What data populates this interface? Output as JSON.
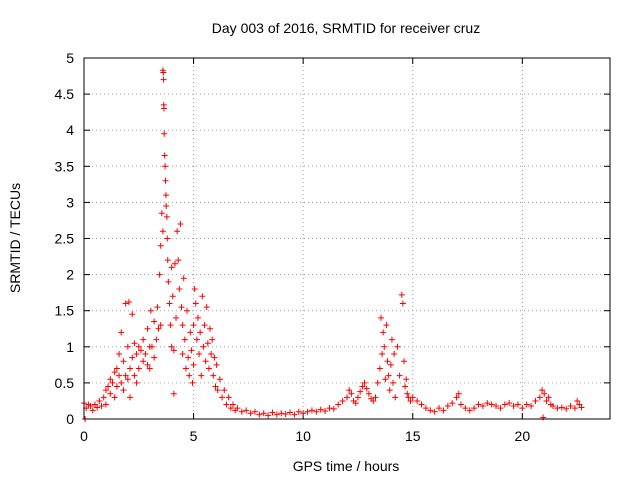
{
  "chart_data": {
    "type": "scatter",
    "title": "Day 003 of 2016, SRMTID for receiver cruz",
    "xlabel": "GPS time / hours",
    "ylabel": "SRMTID / TECUs",
    "xlim": [
      0,
      24
    ],
    "ylim": [
      0,
      5
    ],
    "grid": true,
    "marker": "+",
    "series_color": "#ff0000",
    "x_ticks": [
      0,
      5,
      10,
      15,
      20
    ],
    "x_tick_labels": [
      "0",
      "5",
      "10",
      "15",
      "20"
    ],
    "y_ticks": [
      0,
      0.5,
      1,
      1.5,
      2,
      2.5,
      3,
      3.5,
      4,
      4.5,
      5
    ],
    "y_tick_labels": [
      "0",
      "0.5",
      "1",
      "1.5",
      "2",
      "2.5",
      "3",
      "3.5",
      "4",
      "4.5",
      "5"
    ],
    "series": [
      {
        "name": "SRMTID",
        "points": [
          [
            0.0,
            0.22
          ],
          [
            0.05,
            0.0
          ],
          [
            0.1,
            0.15
          ],
          [
            0.2,
            0.2
          ],
          [
            0.3,
            0.18
          ],
          [
            0.4,
            0.12
          ],
          [
            0.5,
            0.2
          ],
          [
            0.6,
            0.16
          ],
          [
            0.7,
            0.25
          ],
          [
            0.8,
            0.18
          ],
          [
            0.9,
            0.3
          ],
          [
            1.0,
            0.4
          ],
          [
            1.0,
            0.2
          ],
          [
            1.1,
            0.45
          ],
          [
            1.2,
            0.35
          ],
          [
            1.2,
            0.55
          ],
          [
            1.3,
            0.5
          ],
          [
            1.4,
            0.65
          ],
          [
            1.4,
            0.3
          ],
          [
            1.5,
            0.7
          ],
          [
            1.5,
            0.45
          ],
          [
            1.6,
            0.9
          ],
          [
            1.6,
            0.6
          ],
          [
            1.7,
            1.2
          ],
          [
            1.7,
            0.5
          ],
          [
            1.8,
            0.8
          ],
          [
            1.8,
            0.4
          ],
          [
            1.9,
            1.6
          ],
          [
            1.9,
            0.6
          ],
          [
            2.0,
            1.0
          ],
          [
            2.0,
            0.55
          ],
          [
            2.05,
            1.62
          ],
          [
            2.1,
            0.7
          ],
          [
            2.1,
            0.3
          ],
          [
            2.2,
            1.45
          ],
          [
            2.2,
            0.85
          ],
          [
            2.3,
            1.05
          ],
          [
            2.3,
            0.6
          ],
          [
            2.4,
            0.9
          ],
          [
            2.4,
            0.5
          ],
          [
            2.5,
            1.0
          ],
          [
            2.5,
            0.7
          ],
          [
            2.6,
            0.95
          ],
          [
            2.7,
            1.1
          ],
          [
            2.7,
            0.8
          ],
          [
            2.8,
            0.9
          ],
          [
            2.9,
            1.25
          ],
          [
            2.9,
            0.75
          ],
          [
            3.0,
            1.0
          ],
          [
            3.0,
            0.7
          ],
          [
            3.05,
            1.5
          ],
          [
            3.1,
            1.0
          ],
          [
            3.2,
            1.35
          ],
          [
            3.2,
            0.85
          ],
          [
            3.3,
            1.1
          ],
          [
            3.35,
            1.55
          ],
          [
            3.4,
            1.25
          ],
          [
            3.45,
            2.0
          ],
          [
            3.5,
            2.4
          ],
          [
            3.5,
            1.3
          ],
          [
            3.55,
            2.85
          ],
          [
            3.6,
            2.6
          ],
          [
            3.6,
            4.83
          ],
          [
            3.62,
            4.8
          ],
          [
            3.63,
            4.7
          ],
          [
            3.64,
            4.35
          ],
          [
            3.65,
            4.3
          ],
          [
            3.66,
            3.95
          ],
          [
            3.68,
            3.65
          ],
          [
            3.7,
            3.5
          ],
          [
            3.72,
            3.3
          ],
          [
            3.74,
            3.1
          ],
          [
            3.75,
            2.95
          ],
          [
            3.78,
            2.8
          ],
          [
            3.8,
            2.5
          ],
          [
            3.82,
            2.2
          ],
          [
            3.85,
            1.9
          ],
          [
            3.9,
            1.6
          ],
          [
            3.95,
            1.3
          ],
          [
            4.0,
            1.0
          ],
          [
            4.0,
            2.1
          ],
          [
            4.05,
            1.7
          ],
          [
            4.1,
            0.95
          ],
          [
            4.1,
            0.35
          ],
          [
            4.15,
            2.15
          ],
          [
            4.2,
            1.4
          ],
          [
            4.25,
            2.6
          ],
          [
            4.3,
            2.2
          ],
          [
            4.35,
            1.8
          ],
          [
            4.4,
            2.7
          ],
          [
            4.45,
            1.55
          ],
          [
            4.5,
            1.3
          ],
          [
            4.5,
            0.9
          ],
          [
            4.55,
            1.95
          ],
          [
            4.6,
            1.1
          ],
          [
            4.65,
            0.7
          ],
          [
            4.7,
            1.5
          ],
          [
            4.75,
            0.85
          ],
          [
            4.8,
            0.6
          ],
          [
            4.85,
            1.2
          ],
          [
            4.9,
            0.95
          ],
          [
            4.95,
            0.5
          ],
          [
            5.0,
            1.3
          ],
          [
            5.0,
            0.75
          ],
          [
            5.05,
            1.8
          ],
          [
            5.1,
            1.6
          ],
          [
            5.15,
            1.1
          ],
          [
            5.2,
            1.4
          ],
          [
            5.25,
            0.9
          ],
          [
            5.3,
            1.2
          ],
          [
            5.35,
            0.6
          ],
          [
            5.4,
            1.7
          ],
          [
            5.45,
            1.0
          ],
          [
            5.5,
            1.3
          ],
          [
            5.55,
            0.8
          ],
          [
            5.6,
            1.55
          ],
          [
            5.65,
            1.05
          ],
          [
            5.7,
            0.7
          ],
          [
            5.75,
            1.25
          ],
          [
            5.8,
            0.9
          ],
          [
            5.85,
            1.1
          ],
          [
            5.9,
            0.6
          ],
          [
            5.95,
            0.85
          ],
          [
            6.0,
            0.45
          ],
          [
            6.05,
            0.75
          ],
          [
            6.1,
            0.4
          ],
          [
            6.2,
            0.55
          ],
          [
            6.3,
            0.3
          ],
          [
            6.4,
            0.4
          ],
          [
            6.5,
            0.2
          ],
          [
            6.6,
            0.3
          ],
          [
            6.7,
            0.15
          ],
          [
            6.8,
            0.2
          ],
          [
            6.9,
            0.12
          ],
          [
            7.0,
            0.15
          ],
          [
            7.2,
            0.1
          ],
          [
            7.4,
            0.12
          ],
          [
            7.6,
            0.08
          ],
          [
            7.8,
            0.1
          ],
          [
            8.0,
            0.06
          ],
          [
            8.2,
            0.08
          ],
          [
            8.4,
            0.05
          ],
          [
            8.6,
            0.09
          ],
          [
            8.8,
            0.06
          ],
          [
            9.0,
            0.08
          ],
          [
            9.2,
            0.07
          ],
          [
            9.4,
            0.09
          ],
          [
            9.6,
            0.06
          ],
          [
            9.8,
            0.1
          ],
          [
            10.0,
            0.08
          ],
          [
            10.2,
            0.1
          ],
          [
            10.4,
            0.12
          ],
          [
            10.6,
            0.1
          ],
          [
            10.8,
            0.13
          ],
          [
            11.0,
            0.11
          ],
          [
            11.2,
            0.15
          ],
          [
            11.4,
            0.14
          ],
          [
            11.6,
            0.2
          ],
          [
            11.8,
            0.25
          ],
          [
            12.0,
            0.3
          ],
          [
            12.1,
            0.4
          ],
          [
            12.2,
            0.35
          ],
          [
            12.3,
            0.25
          ],
          [
            12.4,
            0.22
          ],
          [
            12.5,
            0.3
          ],
          [
            12.6,
            0.38
          ],
          [
            12.7,
            0.45
          ],
          [
            12.8,
            0.5
          ],
          [
            12.9,
            0.42
          ],
          [
            13.0,
            0.35
          ],
          [
            13.1,
            0.28
          ],
          [
            13.2,
            0.25
          ],
          [
            13.3,
            0.3
          ],
          [
            13.4,
            0.5
          ],
          [
            13.5,
            0.7
          ],
          [
            13.55,
            1.4
          ],
          [
            13.6,
            0.9
          ],
          [
            13.65,
            1.2
          ],
          [
            13.7,
            1.0
          ],
          [
            13.75,
            0.55
          ],
          [
            13.8,
            1.3
          ],
          [
            13.85,
            0.8
          ],
          [
            13.9,
            0.6
          ],
          [
            13.95,
            0.4
          ],
          [
            14.0,
            0.75
          ],
          [
            14.05,
            1.1
          ],
          [
            14.1,
            0.5
          ],
          [
            14.15,
            0.9
          ],
          [
            14.2,
            0.3
          ],
          [
            14.3,
            1.0
          ],
          [
            14.4,
            0.6
          ],
          [
            14.5,
            1.72
          ],
          [
            14.55,
            1.6
          ],
          [
            14.6,
            0.8
          ],
          [
            14.65,
            0.45
          ],
          [
            14.7,
            0.55
          ],
          [
            14.75,
            0.35
          ],
          [
            14.8,
            0.3
          ],
          [
            14.9,
            0.25
          ],
          [
            15.0,
            0.3
          ],
          [
            15.2,
            0.25
          ],
          [
            15.4,
            0.2
          ],
          [
            15.6,
            0.15
          ],
          [
            15.8,
            0.12
          ],
          [
            16.0,
            0.1
          ],
          [
            16.2,
            0.15
          ],
          [
            16.4,
            0.12
          ],
          [
            16.6,
            0.18
          ],
          [
            16.8,
            0.22
          ],
          [
            17.0,
            0.3
          ],
          [
            17.1,
            0.35
          ],
          [
            17.2,
            0.2
          ],
          [
            17.4,
            0.15
          ],
          [
            17.6,
            0.12
          ],
          [
            17.8,
            0.15
          ],
          [
            18.0,
            0.2
          ],
          [
            18.2,
            0.18
          ],
          [
            18.4,
            0.22
          ],
          [
            18.6,
            0.2
          ],
          [
            18.8,
            0.18
          ],
          [
            19.0,
            0.15
          ],
          [
            19.2,
            0.2
          ],
          [
            19.4,
            0.22
          ],
          [
            19.6,
            0.18
          ],
          [
            19.8,
            0.2
          ],
          [
            20.0,
            0.15
          ],
          [
            20.2,
            0.2
          ],
          [
            20.4,
            0.18
          ],
          [
            20.6,
            0.25
          ],
          [
            20.8,
            0.3
          ],
          [
            20.9,
            0.4
          ],
          [
            20.95,
            0.02
          ],
          [
            21.0,
            0.35
          ],
          [
            21.1,
            0.25
          ],
          [
            21.2,
            0.3
          ],
          [
            21.3,
            0.2
          ],
          [
            21.4,
            0.18
          ],
          [
            21.6,
            0.15
          ],
          [
            21.8,
            0.16
          ],
          [
            22.0,
            0.14
          ],
          [
            22.2,
            0.18
          ],
          [
            22.4,
            0.15
          ],
          [
            22.5,
            0.25
          ],
          [
            22.6,
            0.2
          ],
          [
            22.7,
            0.16
          ]
        ]
      }
    ]
  }
}
